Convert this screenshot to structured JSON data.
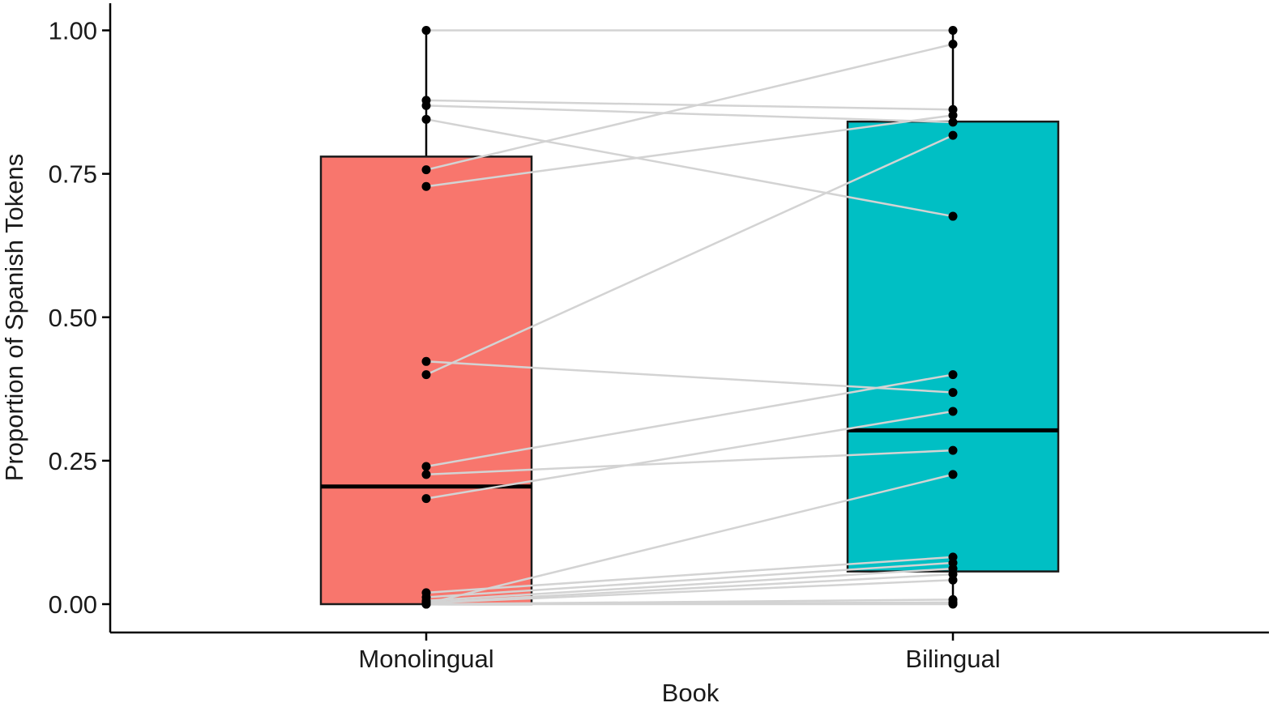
{
  "chart_data": {
    "type": "boxplot",
    "xlabel": "Book",
    "ylabel": "Proportion of Spanish Tokens",
    "categories": [
      "Monolingual",
      "Bilingual"
    ],
    "ylim": [
      -0.05,
      1.05
    ],
    "yticks": [
      0,
      0.25,
      0.5,
      0.75,
      1.0
    ],
    "ytick_labels": [
      "0.00",
      "0.25",
      "0.50",
      "0.75",
      "1.00"
    ],
    "grid": false,
    "legend": "none",
    "boxes": [
      {
        "category": "Monolingual",
        "color": "#F8766D",
        "q1": 0.0,
        "median": 0.205,
        "q3": 0.78,
        "whisker_low": 0.0,
        "whisker_high": 1.0
      },
      {
        "category": "Bilingual",
        "color": "#00BFC4",
        "q1": 0.057,
        "median": 0.303,
        "q3": 0.841,
        "whisker_low": 0.0,
        "whisker_high": 1.0
      }
    ],
    "paired_points": [
      {
        "monolingual": 1.0,
        "bilingual": 1.0
      },
      {
        "monolingual": 0.878,
        "bilingual": 0.862
      },
      {
        "monolingual": 0.869,
        "bilingual": 0.84
      },
      {
        "monolingual": 0.845,
        "bilingual": 0.676
      },
      {
        "monolingual": 0.757,
        "bilingual": 0.976
      },
      {
        "monolingual": 0.728,
        "bilingual": 0.852
      },
      {
        "monolingual": 0.423,
        "bilingual": 0.369
      },
      {
        "monolingual": 0.4,
        "bilingual": 0.817
      },
      {
        "monolingual": 0.24,
        "bilingual": 0.4
      },
      {
        "monolingual": 0.226,
        "bilingual": 0.268
      },
      {
        "monolingual": 0.184,
        "bilingual": 0.336
      },
      {
        "monolingual": 0.02,
        "bilingual": 0.082
      },
      {
        "monolingual": 0.012,
        "bilingual": 0.072
      },
      {
        "monolingual": 0.006,
        "bilingual": 0.062
      },
      {
        "monolingual": 0.003,
        "bilingual": 0.052
      },
      {
        "monolingual": 0.002,
        "bilingual": 0.042
      },
      {
        "monolingual": 0.001,
        "bilingual": 0.226
      },
      {
        "monolingual": 0.0,
        "bilingual": 0.008
      },
      {
        "monolingual": 0.0,
        "bilingual": 0.003
      },
      {
        "monolingual": 0.0,
        "bilingual": 0.0
      }
    ],
    "line_color": "#d3d3d3",
    "point_color": "#000000"
  }
}
